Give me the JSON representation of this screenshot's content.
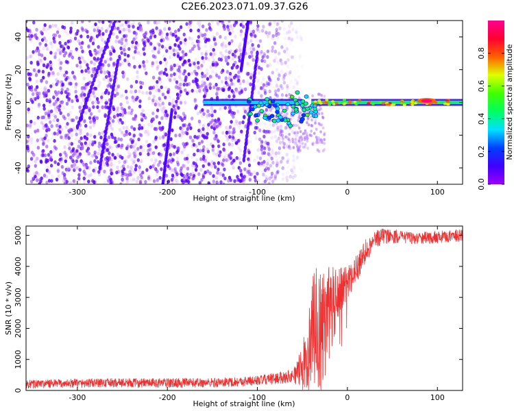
{
  "title": "C2E6.2023.071.09.37.G26",
  "colors": {
    "scatter_low": "#6200ff",
    "snr_line": "#ee3030",
    "colorbar": [
      "#9b00ff",
      "#4000ff",
      "#0040ff",
      "#00e0ff",
      "#00ff60",
      "#40ff00",
      "#e0ff00",
      "#ff6000",
      "#ff0030",
      "#ff0090"
    ]
  },
  "chart_data": [
    {
      "type": "heatmap",
      "xlabel": "Height of straight line (km)",
      "ylabel": "Frequency (Hz)",
      "colorbar_label": "Normalized spectral amplitude",
      "xlim": [
        -357,
        128
      ],
      "ylim": [
        -50,
        50
      ],
      "xticks": [
        -300,
        -200,
        -100,
        0,
        100
      ],
      "xtick_labels": [
        "-300",
        "-200",
        "-100",
        "0",
        "100"
      ],
      "yticks": [
        -40,
        -20,
        0,
        20,
        40
      ],
      "ytick_labels": [
        "-40",
        "-20",
        "0",
        "20",
        "40"
      ],
      "colorbar_range": [
        0,
        1
      ],
      "colorbar_ticks": [
        0.0,
        0.2,
        0.4,
        0.6,
        0.8
      ],
      "colorbar_tick_labels": [
        "0.0",
        "0.2",
        "0.4",
        "0.6",
        "0.8"
      ],
      "noise_region_x": [
        -357,
        -70
      ],
      "carrier_segments": [
        {
          "x": [
            -160,
            -50
          ],
          "y": 0,
          "amplitude": 0.3
        },
        {
          "x": [
            -40,
            128
          ],
          "y": 0,
          "amplitude": 0.45
        }
      ],
      "carrier_peak": {
        "x": 88,
        "y": 1,
        "amplitude": 0.95
      },
      "streaks": [
        {
          "x": [
            -300,
            -258
          ],
          "y": [
            -15,
            50
          ]
        },
        {
          "x": [
            -275,
            -255
          ],
          "y": [
            -40,
            25
          ]
        },
        {
          "x": [
            -205,
            -195
          ],
          "y": [
            -50,
            -5
          ]
        },
        {
          "x": [
            -115,
            -100
          ],
          "y": [
            -35,
            30
          ]
        },
        {
          "x": [
            -118,
            -110
          ],
          "y": [
            20,
            50
          ]
        }
      ],
      "grid": false
    },
    {
      "type": "line",
      "xlabel": "Height of straight line (km)",
      "ylabel": "SNR (10 * v/v)",
      "xlim": [
        -357,
        128
      ],
      "ylim": [
        0,
        5300
      ],
      "xticks": [
        -300,
        -200,
        -100,
        0,
        100
      ],
      "xtick_labels": [
        "-300",
        "-200",
        "-100",
        "0",
        "100"
      ],
      "yticks": [
        0,
        1000,
        2000,
        3000,
        4000,
        5000
      ],
      "ytick_labels": [
        "0",
        "1000",
        "2000",
        "3000",
        "4000",
        "5000"
      ],
      "grid": false,
      "series": [
        {
          "envelope": {
            "x": [
              -357,
              -300,
              -250,
              -200,
              -150,
              -120,
              -100,
              -80,
              -60,
              -50,
              -45,
              -40,
              -35,
              -30,
              -25,
              -20,
              -15,
              -10,
              -5,
              0,
              10,
              20,
              30,
              40,
              60,
              80,
              100,
              128
            ],
            "y": [
              200,
              230,
              250,
              240,
              250,
              280,
              320,
              380,
              480,
              700,
              1100,
              1600,
              2300,
              1800,
              2000,
              2500,
              2800,
              3100,
              3300,
              3500,
              3900,
              4500,
              4850,
              5000,
              4950,
              4900,
              4950,
              5000
            ]
          },
          "noise_amplitude": {
            "x": [
              -357,
              -100,
              -60,
              -50,
              -40,
              -30,
              -20,
              -10,
              0,
              30,
              60,
              128
            ],
            "y": [
              140,
              160,
              220,
              700,
              1900,
              2200,
              1500,
              900,
              550,
              300,
              200,
              200
            ]
          }
        }
      ]
    }
  ]
}
